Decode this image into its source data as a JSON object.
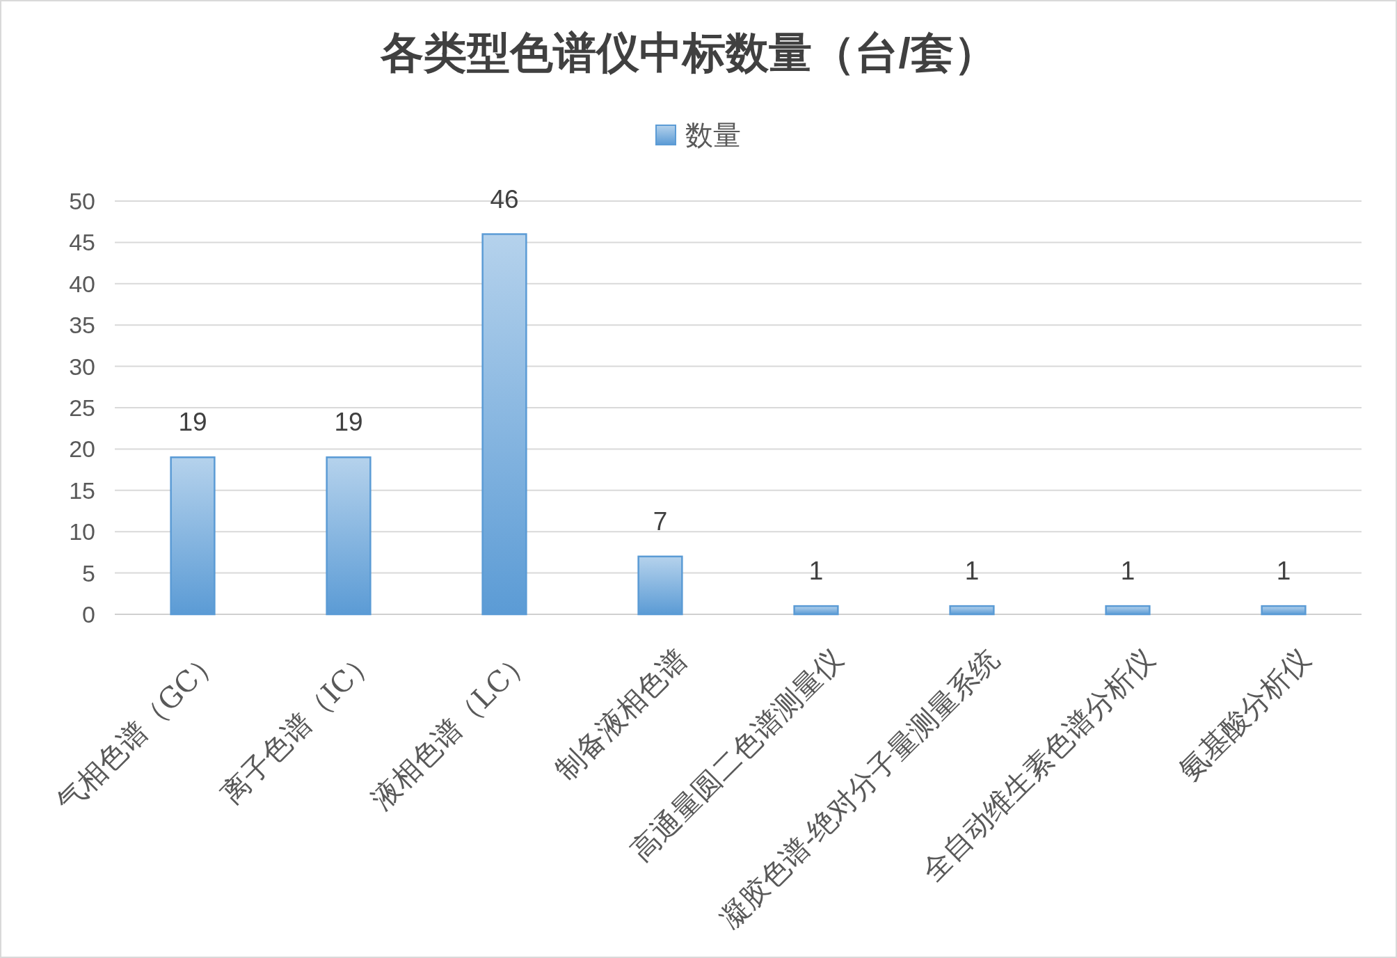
{
  "chart_data": {
    "type": "bar",
    "title": "各类型色谱仪中标数量（台/套）",
    "categories": [
      "气相色谱（GC）",
      "离子色谱（IC）",
      "液相色谱（LC）",
      "制备液相色谱",
      "高通量圆二色谱测量仪",
      "凝胶色谱-绝对分子量测量系统",
      "全自动维生素色谱分析仪",
      "氨基酸分析仪"
    ],
    "series": [
      {
        "name": "数量",
        "color": "#5b9bd5",
        "values": [
          19,
          19,
          46,
          7,
          1,
          1,
          1,
          1
        ]
      }
    ],
    "ylim": [
      0,
      50
    ],
    "yticks": [
      0,
      5,
      10,
      15,
      20,
      25,
      30,
      35,
      40,
      45,
      50
    ],
    "grid": "y",
    "legend": "top",
    "data_labels": true
  }
}
